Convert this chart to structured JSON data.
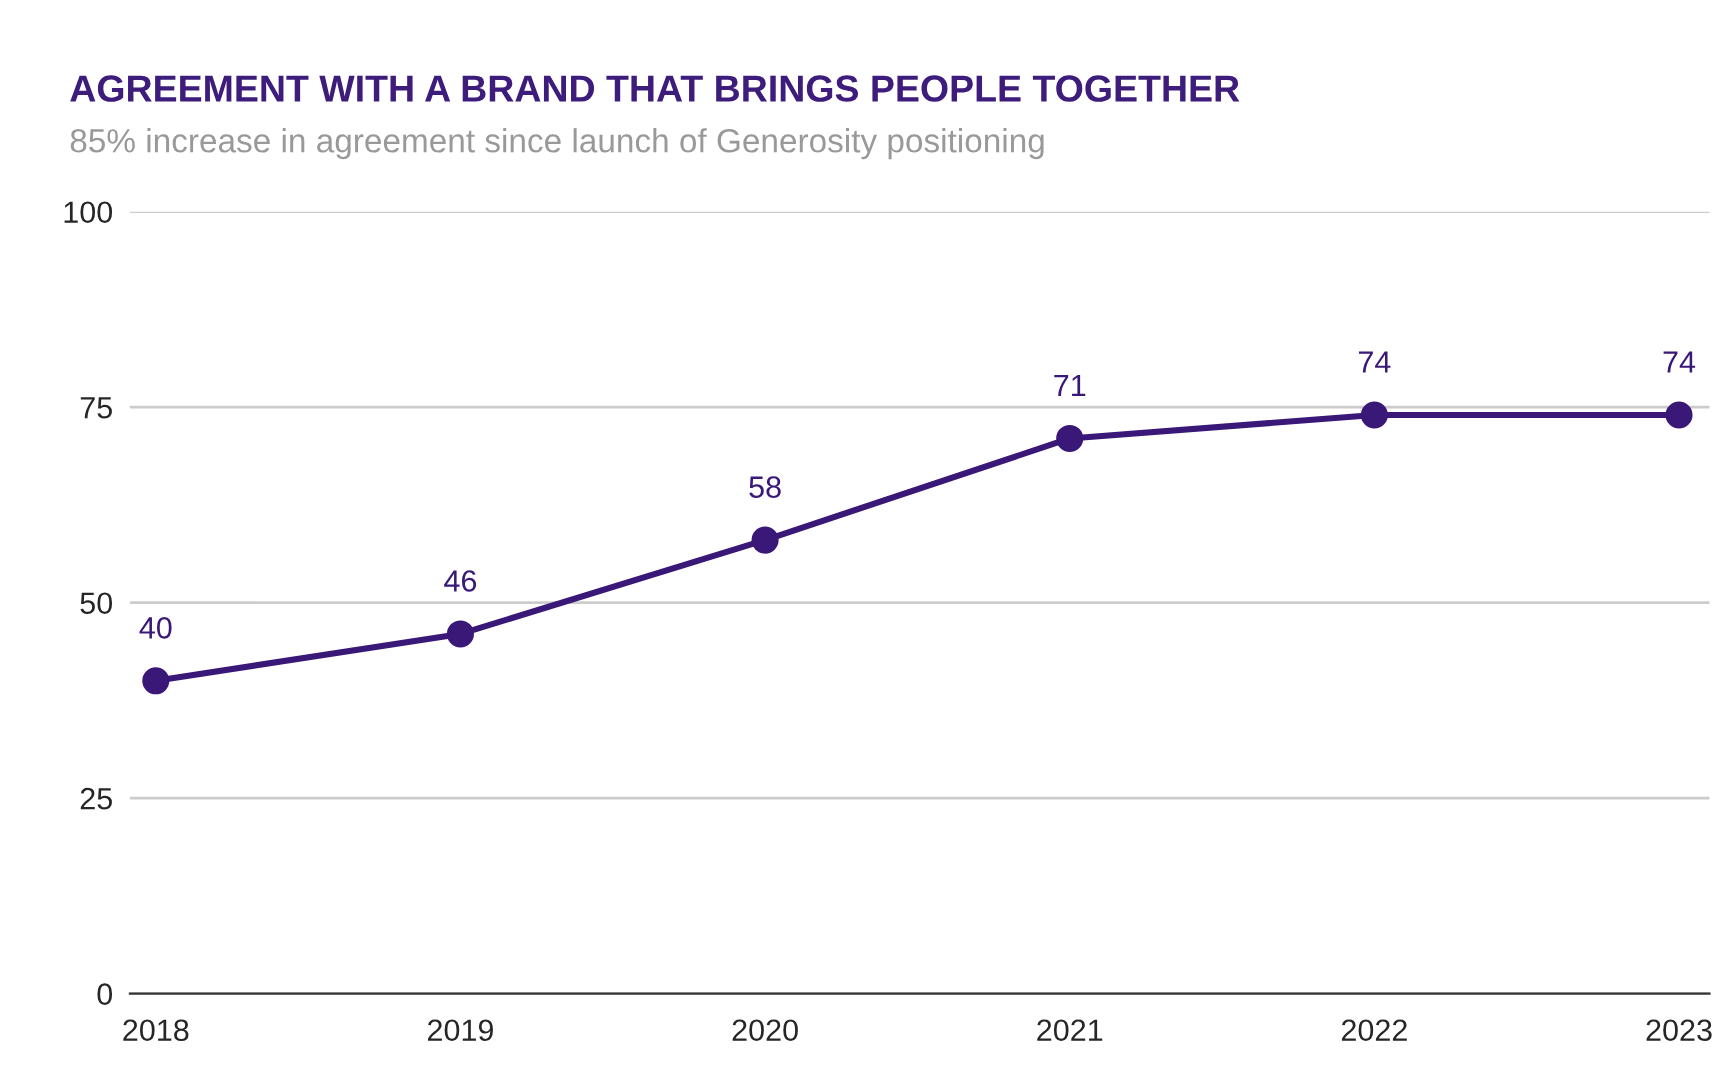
{
  "chart_data": {
    "type": "line",
    "title": "AGREEMENT WITH A BRAND THAT BRINGS PEOPLE TOGETHER",
    "subtitle": "85% increase in agreement since launch of Generosity positioning",
    "categories": [
      "2018",
      "2019",
      "2020",
      "2021",
      "2022",
      "2023"
    ],
    "series": [
      {
        "color": "#3a1878",
        "values": [
          40,
          46,
          58,
          71,
          74,
          74
        ]
      }
    ],
    "ylim": [
      0,
      100
    ],
    "yticks": [
      0,
      25,
      50,
      75,
      100
    ],
    "grid": "y",
    "marker": "circle",
    "line_style": "solid",
    "data_labels": true,
    "legend": false
  }
}
